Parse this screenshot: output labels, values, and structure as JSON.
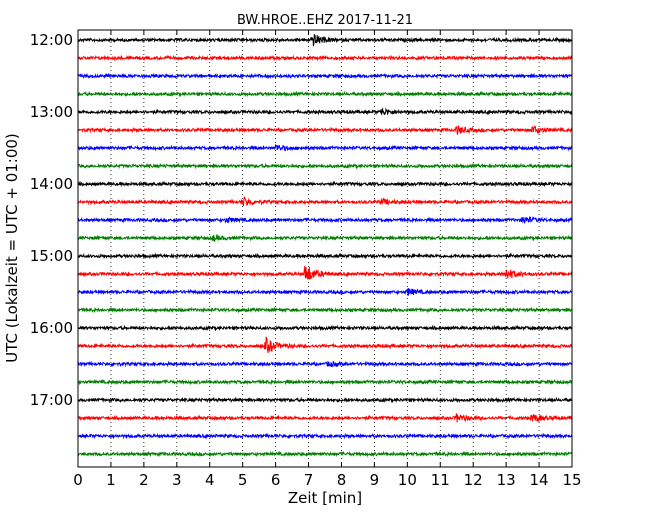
{
  "chart_data": {
    "type": "line",
    "title": "BW.HROE..EHZ 2017-11-21",
    "xlabel": "Zeit  [min]",
    "ylabel": "UTC (Lokalzeit = UTC + 01:00)",
    "xlim": [
      0,
      15
    ],
    "x_ticks": [
      "0",
      "1",
      "2",
      "3",
      "4",
      "5",
      "6",
      "7",
      "8",
      "9",
      "10",
      "11",
      "12",
      "13",
      "14",
      "15"
    ],
    "y_ticks": [
      "12:00",
      "13:00",
      "14:00",
      "15:00",
      "16:00",
      "17:00"
    ],
    "trace_colors": [
      "#000000",
      "#ff0000",
      "#0000ff",
      "#007f00"
    ],
    "trace_interval_minutes": 15,
    "start_time": "12:00",
    "traces": [
      {
        "start": "12:00",
        "color": "#000000",
        "events": [
          {
            "t": 7.1,
            "amp": 3.0
          }
        ]
      },
      {
        "start": "12:15",
        "color": "#ff0000",
        "events": []
      },
      {
        "start": "12:30",
        "color": "#0000ff",
        "events": []
      },
      {
        "start": "12:45",
        "color": "#007f00",
        "events": []
      },
      {
        "start": "13:00",
        "color": "#000000",
        "events": [
          {
            "t": 9.2,
            "amp": 1.5
          }
        ]
      },
      {
        "start": "13:15",
        "color": "#ff0000",
        "events": [
          {
            "t": 11.5,
            "amp": 1.8
          },
          {
            "t": 13.8,
            "amp": 1.8
          }
        ]
      },
      {
        "start": "13:30",
        "color": "#0000ff",
        "events": [
          {
            "t": 6.0,
            "amp": 1.5
          }
        ]
      },
      {
        "start": "13:45",
        "color": "#007f00",
        "events": []
      },
      {
        "start": "14:00",
        "color": "#000000",
        "events": []
      },
      {
        "start": "14:15",
        "color": "#ff0000",
        "events": [
          {
            "t": 5.0,
            "amp": 2.2
          },
          {
            "t": 9.2,
            "amp": 1.2
          }
        ]
      },
      {
        "start": "14:30",
        "color": "#0000ff",
        "events": [
          {
            "t": 4.5,
            "amp": 1.0
          },
          {
            "t": 13.5,
            "amp": 1.5
          }
        ]
      },
      {
        "start": "14:45",
        "color": "#007f00",
        "events": [
          {
            "t": 4.1,
            "amp": 1.2
          }
        ]
      },
      {
        "start": "15:00",
        "color": "#000000",
        "events": []
      },
      {
        "start": "15:15",
        "color": "#ff0000",
        "events": [
          {
            "t": 6.9,
            "amp": 4.5
          },
          {
            "t": 13.0,
            "amp": 2.5
          }
        ]
      },
      {
        "start": "15:30",
        "color": "#0000ff",
        "events": [
          {
            "t": 10.0,
            "amp": 1.5
          }
        ]
      },
      {
        "start": "15:45",
        "color": "#007f00",
        "events": []
      },
      {
        "start": "16:00",
        "color": "#000000",
        "events": []
      },
      {
        "start": "16:15",
        "color": "#ff0000",
        "events": [
          {
            "t": 5.7,
            "amp": 3.5
          }
        ]
      },
      {
        "start": "16:30",
        "color": "#0000ff",
        "events": [
          {
            "t": 7.6,
            "amp": 1.0
          }
        ]
      },
      {
        "start": "16:45",
        "color": "#007f00",
        "events": []
      },
      {
        "start": "17:00",
        "color": "#000000",
        "events": []
      },
      {
        "start": "17:15",
        "color": "#ff0000",
        "events": [
          {
            "t": 11.5,
            "amp": 1.8
          },
          {
            "t": 13.8,
            "amp": 1.8
          }
        ]
      },
      {
        "start": "17:30",
        "color": "#0000ff",
        "events": []
      },
      {
        "start": "17:45",
        "color": "#007f00",
        "events": []
      }
    ],
    "grid": "vertical dotted",
    "legend": "none"
  }
}
